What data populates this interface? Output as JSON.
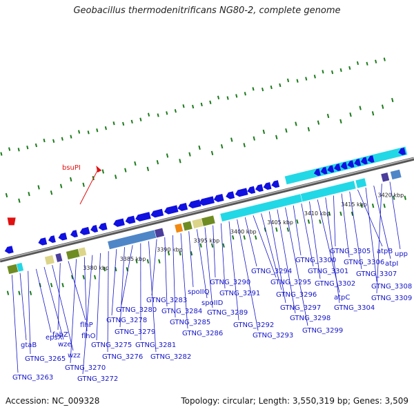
{
  "title": "Geobacillus thermodenitrificans NG80-2, complete genome",
  "footer": {
    "accession": "Accession: NC_009328",
    "topology": "Topology: circular; Length: 3,550,319 bp; Genes: 3,509"
  },
  "colors": {
    "gene_label": "#1414c8",
    "forward_strand": "#1010e0",
    "cds_teal": "#22d8e6",
    "cds_olive": "#6f8c22",
    "cds_blue": "#4f86c8",
    "cds_purple": "#4a3d9c",
    "cds_orange": "#f08a12",
    "cds_tan": "#dcd488",
    "site": "#e01010",
    "gc_tick": "#1a7a1a",
    "backbone": "#808080"
  },
  "scale_ticks": [
    "3380 kbp",
    "3385 kbp",
    "3390 kbp",
    "3395 kbp",
    "3400 kbp",
    "3405 kbp",
    "3410 kbp",
    "3415 kbp",
    "3420 kbp"
  ],
  "restriction_site": "bsuPI",
  "gene_labels": [
    "GTNG_3263",
    "gtaB",
    "GTNG_3265",
    "epsX",
    "wze",
    "wzz",
    "fabZ",
    "flhP",
    "GTNG_3270",
    "flhO",
    "GTNG_3272",
    "GTNG_3275",
    "GTNG_3276",
    "GTNG_3278",
    "GTNG_3279",
    "GTNG_3280",
    "GTNG_3281",
    "GTNG_3282",
    "GTNG_3283",
    "GTNG_3284",
    "GTNG_3285",
    "GTNG_3286",
    "spoIIQ",
    "spoIID",
    "GTNG_3289",
    "GTNG_3290",
    "GTNG_3291",
    "GTNG_3292",
    "GTNG_3293",
    "GTNG_3294",
    "GTNG_3295",
    "GTNG_3296",
    "GTNG_3297",
    "GTNG_3298",
    "GTNG_3299",
    "GTNG_3300",
    "GTNG_3301",
    "GTNG_3302",
    "atpC",
    "GTNG_3304",
    "GTNG_3305",
    "GTNG_3306",
    "GTNG_3307",
    "atpB",
    "GTNG_3308",
    "atpI",
    "GTNG_3309",
    "upp"
  ]
}
